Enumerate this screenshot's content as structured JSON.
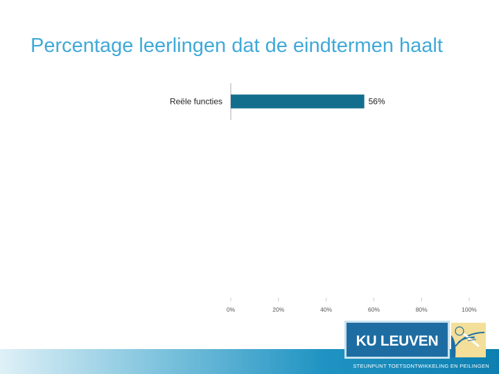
{
  "title": "Percentage leerlingen dat de eindtermen haalt",
  "chart_data": {
    "type": "bar",
    "orientation": "horizontal",
    "categories": [
      "Reële functies"
    ],
    "values": [
      56
    ],
    "value_labels": [
      "56%"
    ],
    "xlim": [
      0,
      100
    ],
    "xticks": [
      0,
      20,
      40,
      60,
      80,
      100
    ],
    "xtick_labels": [
      "0%",
      "20%",
      "40%",
      "60%",
      "80%",
      "100%"
    ],
    "bar_color": "#136e8d",
    "grid": false
  },
  "logo": {
    "name": "KU LEUVEN",
    "color": "#1e6da2"
  },
  "footer": {
    "text": "STEUNPUNT TOETSONTWIKKELING EN PEILINGEN"
  }
}
